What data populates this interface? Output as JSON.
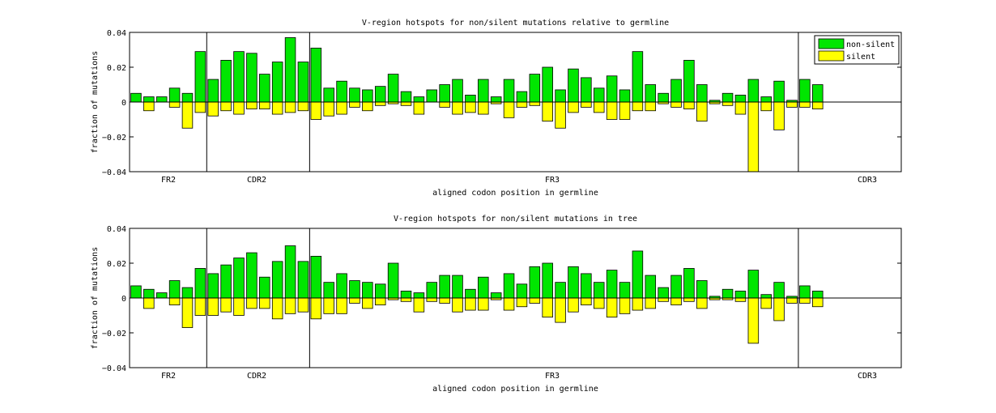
{
  "legend": {
    "nonsilent_label": "non-silent",
    "silent_label": "silent",
    "nonsilent_color": "#00E600",
    "silent_color": "#FFFF00",
    "placement": "top-right"
  },
  "chart_data": [
    {
      "type": "bar",
      "title": "V-region hotspots for non/silent mutations relative to germline",
      "xlabel": "aligned codon position in germline",
      "ylabel": "fraction of mutations",
      "ylim": [
        -0.04,
        0.04
      ],
      "yticks": [
        "0.04",
        "0.02",
        "0",
        "−0.02",
        "−0.04"
      ],
      "regions": [
        "FR2",
        "CDR2",
        "FR3",
        "CDR3"
      ],
      "region_boundaries": [
        6.5,
        14.5,
        52.5
      ],
      "x_range": [
        0.5,
        60.5
      ],
      "legend_shown": true,
      "series": [
        {
          "name": "non-silent",
          "values": [
            0.005,
            0.003,
            0.003,
            0.008,
            0.005,
            0.029,
            0.013,
            0.024,
            0.029,
            0.028,
            0.016,
            0.023,
            0.037,
            0.023,
            0.031,
            0.008,
            0.012,
            0.008,
            0.007,
            0.009,
            0.016,
            0.006,
            0.003,
            0.007,
            0.01,
            0.013,
            0.004,
            0.013,
            0.003,
            0.013,
            0.006,
            0.016,
            0.02,
            0.007,
            0.019,
            0.014,
            0.008,
            0.015,
            0.007,
            0.029,
            0.01,
            0.005,
            0.013,
            0.024,
            0.01,
            0.001,
            0.005,
            0.004,
            0.013,
            0.003,
            0.012,
            0.001,
            0.013,
            0.01
          ]
        },
        {
          "name": "silent",
          "values": [
            0.0,
            -0.005,
            0.0,
            -0.003,
            -0.015,
            -0.006,
            -0.008,
            -0.005,
            -0.007,
            -0.004,
            -0.004,
            -0.007,
            -0.006,
            -0.005,
            -0.01,
            -0.008,
            -0.007,
            -0.003,
            -0.005,
            -0.002,
            -0.001,
            -0.002,
            -0.007,
            0.0,
            -0.003,
            -0.007,
            -0.006,
            -0.007,
            -0.001,
            -0.009,
            -0.003,
            -0.002,
            -0.011,
            -0.015,
            -0.006,
            -0.003,
            -0.006,
            -0.01,
            -0.01,
            -0.005,
            -0.005,
            -0.001,
            -0.003,
            -0.004,
            -0.011,
            -0.001,
            -0.002,
            -0.007,
            -0.042,
            -0.005,
            -0.016,
            -0.003,
            -0.003,
            -0.004
          ]
        }
      ]
    },
    {
      "type": "bar",
      "title": "V-region hotspots for non/silent mutations in tree",
      "xlabel": "aligned codon position in germline",
      "ylabel": "fraction of mutations",
      "ylim": [
        -0.04,
        0.04
      ],
      "yticks": [
        "0.04",
        "0.02",
        "0",
        "−0.02",
        "−0.04"
      ],
      "regions": [
        "FR2",
        "CDR2",
        "FR3",
        "CDR3"
      ],
      "region_boundaries": [
        6.5,
        14.5,
        52.5
      ],
      "x_range": [
        0.5,
        60.5
      ],
      "legend_shown": false,
      "series": [
        {
          "name": "non-silent",
          "values": [
            0.007,
            0.005,
            0.003,
            0.01,
            0.006,
            0.017,
            0.014,
            0.019,
            0.023,
            0.026,
            0.012,
            0.021,
            0.03,
            0.021,
            0.024,
            0.009,
            0.014,
            0.01,
            0.009,
            0.008,
            0.02,
            0.004,
            0.003,
            0.009,
            0.013,
            0.013,
            0.005,
            0.012,
            0.003,
            0.014,
            0.008,
            0.018,
            0.02,
            0.009,
            0.018,
            0.014,
            0.009,
            0.016,
            0.009,
            0.027,
            0.013,
            0.006,
            0.013,
            0.017,
            0.01,
            0.001,
            0.005,
            0.004,
            0.016,
            0.002,
            0.009,
            0.001,
            0.007,
            0.004
          ]
        },
        {
          "name": "silent",
          "values": [
            0.0,
            -0.006,
            0.0,
            -0.004,
            -0.017,
            -0.01,
            -0.01,
            -0.008,
            -0.01,
            -0.006,
            -0.006,
            -0.012,
            -0.009,
            -0.008,
            -0.012,
            -0.009,
            -0.009,
            -0.003,
            -0.006,
            -0.004,
            -0.001,
            -0.002,
            -0.008,
            -0.002,
            -0.003,
            -0.008,
            -0.007,
            -0.007,
            -0.001,
            -0.007,
            -0.005,
            -0.003,
            -0.011,
            -0.014,
            -0.008,
            -0.004,
            -0.006,
            -0.011,
            -0.009,
            -0.007,
            -0.006,
            -0.002,
            -0.004,
            -0.002,
            -0.006,
            -0.001,
            -0.001,
            -0.002,
            -0.026,
            -0.006,
            -0.013,
            -0.003,
            -0.003,
            -0.005
          ]
        }
      ]
    }
  ]
}
